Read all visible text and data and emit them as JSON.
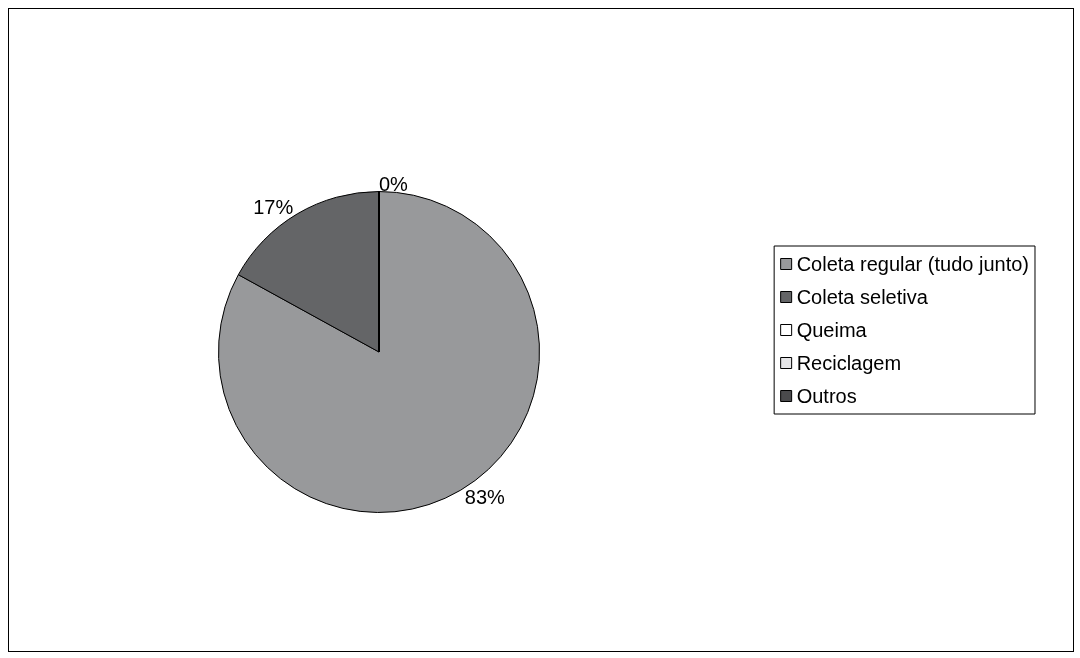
{
  "chart_data": {
    "type": "pie",
    "categories": [
      "Coleta regular (tudo junto)",
      "Coleta seletiva",
      "Queima",
      "Reciclagem",
      "Outros"
    ],
    "values": [
      83,
      17,
      0,
      0,
      0
    ],
    "colors": [
      "#98999b",
      "#646567",
      "#ffffff",
      "#e6e6e8",
      "#4a4a4c"
    ],
    "value_labels": [
      "83%",
      "17%",
      "0%",
      null,
      null
    ],
    "legend": "right"
  }
}
